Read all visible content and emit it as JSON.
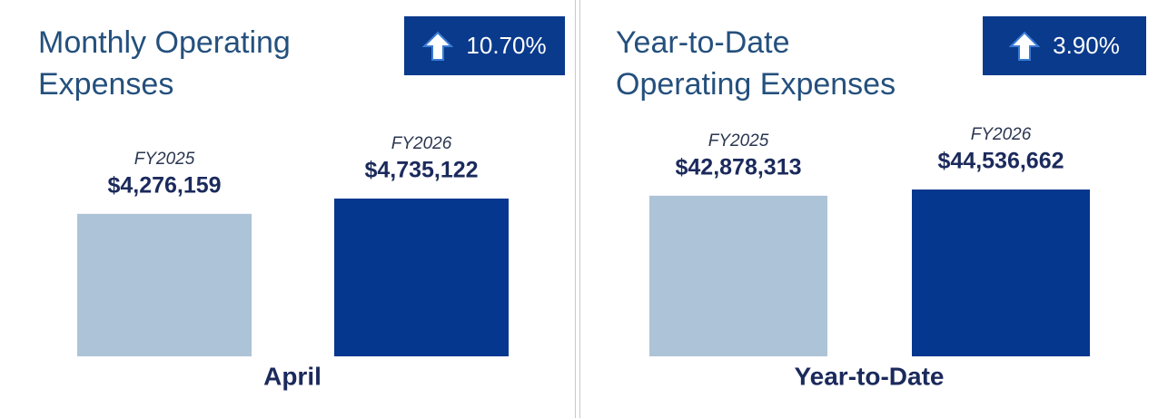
{
  "chart_data": [
    {
      "type": "bar",
      "title": "Monthly Operating Expenses",
      "badge": "10.70%",
      "categories": [
        "FY2025",
        "FY2026"
      ],
      "values": [
        4276159,
        4735122
      ],
      "value_labels": [
        "$4,276,159",
        "$4,735,122"
      ],
      "colors": [
        "#adc3d7",
        "#06378f"
      ],
      "xlabel": "April",
      "ylim": [
        0,
        6340000
      ]
    },
    {
      "type": "bar",
      "title": "Year-to-Date Operating Expenses",
      "badge": "3.90%",
      "categories": [
        "FY2025",
        "FY2026"
      ],
      "values": [
        42878313,
        44536662
      ],
      "value_labels": [
        "$42,878,313",
        "$44,536,662"
      ],
      "colors": [
        "#adc3d7",
        "#06378f"
      ],
      "xlabel": "Year-to-Date",
      "ylim": [
        0,
        56400000
      ]
    }
  ]
}
